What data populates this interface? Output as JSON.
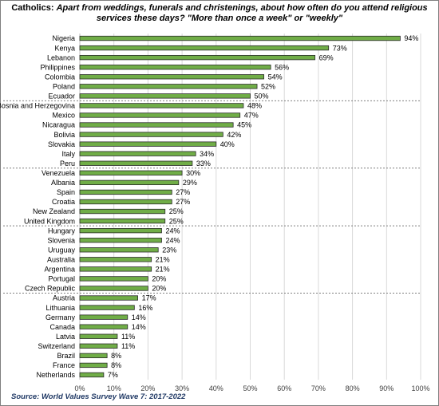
{
  "title": {
    "lead": "Catholics: ",
    "question_line1": "Apart from weddings, funerals and christenings, about how often do you attend religious",
    "question_line2": "services these days? \"More than once a week\" or \"weekly\""
  },
  "source": "Source: World Values Survey Wave 7: 2017-2022",
  "colors": {
    "bar_fill": "#70ad47",
    "bar_border": "#2a2a2a",
    "gridline": "#d9d9d9",
    "separator": "#7f7f7f",
    "source_text": "#1f3864"
  },
  "chart_data": {
    "type": "bar",
    "orientation": "horizontal",
    "categories": [
      "Nigeria",
      "Kenya",
      "Lebanon",
      "Philippines",
      "Colombia",
      "Poland",
      "Ecuador",
      "Bosnia and Herzegovina",
      "Mexico",
      "Nicaragua",
      "Bolivia",
      "Slovakia",
      "Italy",
      "Peru",
      "Venezuela",
      "Albania",
      "Spain",
      "Croatia",
      "New Zealand",
      "United Kingdom",
      "Hungary",
      "Slovenia",
      "Uruguay",
      "Australia",
      "Argentina",
      "Portugal",
      "Czech Republic",
      "Austria",
      "Lithuania",
      "Germany",
      "Canada",
      "Latvia",
      "Switzerland",
      "Brazil",
      "France",
      "Netherlands"
    ],
    "values": [
      94,
      73,
      69,
      56,
      54,
      52,
      50,
      48,
      47,
      45,
      42,
      40,
      34,
      33,
      30,
      29,
      27,
      27,
      25,
      25,
      24,
      24,
      23,
      21,
      21,
      20,
      20,
      17,
      16,
      14,
      14,
      11,
      11,
      8,
      8,
      7
    ],
    "data_labels": [
      "94%",
      "73%",
      "69%",
      "56%",
      "54%",
      "52%",
      "50%",
      "48%",
      "47%",
      "45%",
      "42%",
      "40%",
      "34%",
      "33%",
      "30%",
      "29%",
      "27%",
      "27%",
      "25%",
      "25%",
      "24%",
      "24%",
      "23%",
      "21%",
      "21%",
      "20%",
      "20%",
      "17%",
      "16%",
      "14%",
      "14%",
      "11%",
      "11%",
      "8%",
      "8%",
      "7%"
    ],
    "xlim": [
      0,
      100
    ],
    "x_ticks": [
      "0%",
      "10%",
      "20%",
      "30%",
      "40%",
      "50%",
      "60%",
      "70%",
      "80%",
      "90%",
      "100%"
    ],
    "grid": true,
    "group_separators_after": [
      "Ecuador",
      "Peru",
      "United Kingdom",
      "Czech Republic"
    ]
  }
}
